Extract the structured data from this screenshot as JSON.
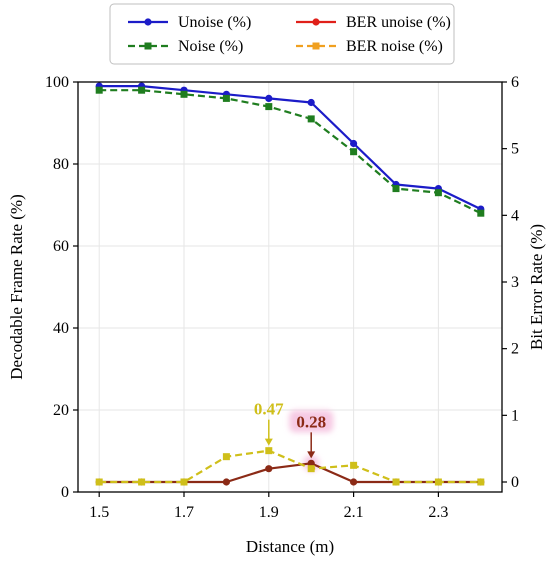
{
  "chart_data": {
    "type": "line",
    "x_label": "Distance (m)",
    "y_left_label": "Decodable Frame Rate (%)",
    "y_right_label": "Bit Error Rate (%)",
    "x": [
      1.5,
      1.6,
      1.7,
      1.8,
      1.9,
      2.0,
      2.1,
      2.2,
      2.3,
      2.4
    ],
    "x_ticks": [
      "1.5",
      "1.7",
      "1.9",
      "2.1",
      "2.3"
    ],
    "x_tick_values": [
      1.5,
      1.7,
      1.9,
      2.1,
      2.3
    ],
    "xlim": [
      1.45,
      2.45
    ],
    "y_left_ticks": [
      "0",
      "20",
      "40",
      "60",
      "80",
      "100"
    ],
    "y_left_tick_values": [
      0,
      20,
      40,
      60,
      80,
      100
    ],
    "ylim_left": [
      0,
      100
    ],
    "y_right_ticks": [
      "0",
      "1",
      "2",
      "3",
      "4",
      "5",
      "6"
    ],
    "y_right_tick_values": [
      0,
      1,
      2,
      3,
      4,
      5,
      6
    ],
    "ylim_right": [
      -0.15,
      6
    ],
    "grid": true,
    "legend_position": "top-center, outside plot, 2 columns",
    "series": [
      {
        "name": "Unoise (%)",
        "axis": "left",
        "color": "#1c1cc8",
        "style": "solid",
        "marker": "circle",
        "values": [
          99,
          99,
          98,
          97,
          96,
          95,
          85,
          75,
          74,
          69
        ]
      },
      {
        "name": "Noise (%)",
        "axis": "left",
        "color": "#1f7d1f",
        "style": "dashed",
        "marker": "square",
        "values": [
          98,
          98,
          97,
          96,
          94,
          91,
          83,
          74,
          73,
          68
        ]
      },
      {
        "name": "BER unoise (%)",
        "axis": "right",
        "color": "#8b2a16",
        "legend_color": "#e0201a",
        "style": "solid",
        "marker": "circle",
        "values": [
          0,
          0,
          0,
          0,
          0.2,
          0.28,
          0,
          0,
          0,
          0
        ]
      },
      {
        "name": "BER noise (%)",
        "axis": "right",
        "color": "#cfbf1a",
        "legend_color": "#f0a020",
        "style": "dashed",
        "marker": "square",
        "values": [
          0,
          0,
          0,
          0.38,
          0.47,
          0.2,
          0.25,
          0,
          0,
          0
        ]
      }
    ],
    "annotations": [
      {
        "text": "0.47",
        "series": "BER noise (%)",
        "x": 1.9,
        "y": 0.47,
        "color": "#cfbf1a"
      },
      {
        "text": "0.28",
        "series": "BER unoise (%)",
        "x": 2.0,
        "y": 0.28,
        "color": "#8b2a16",
        "highlight": "#f6c9e3"
      }
    ]
  }
}
